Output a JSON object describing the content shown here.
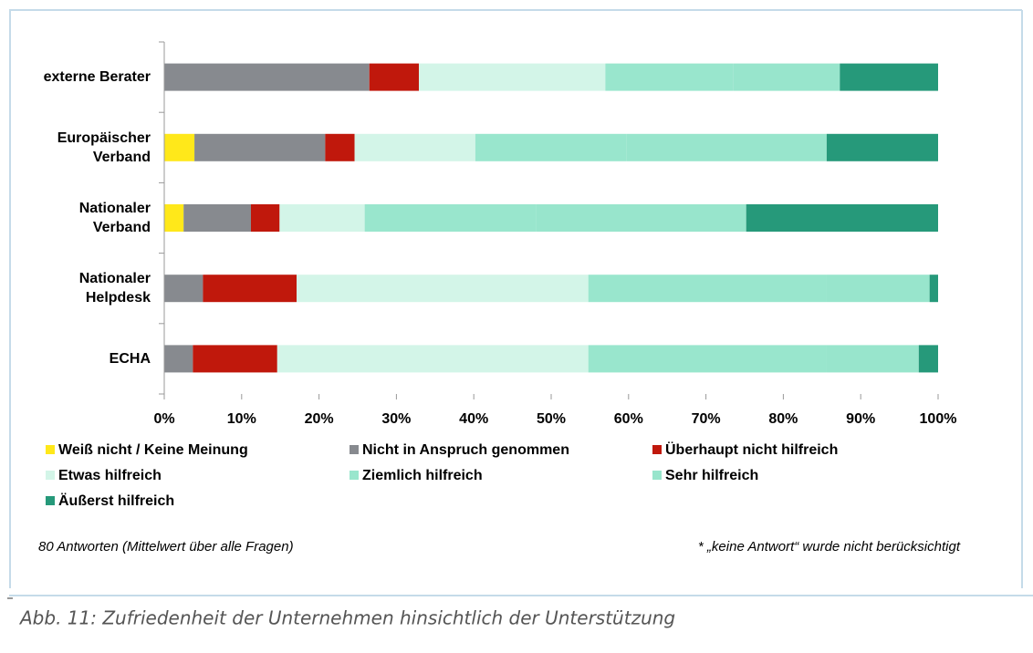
{
  "chart_data": {
    "type": "bar",
    "orientation": "horizontal",
    "stacked": true,
    "categories": [
      "externe Berater",
      "Europäischer Verband",
      "Nationaler Verband",
      "Nationaler Helpdesk",
      "ECHA"
    ],
    "series": [
      {
        "name": "Weiß nicht / Keine Meinung",
        "color": "#ffe81a",
        "values": [
          0,
          3.9,
          2.5,
          0,
          0
        ]
      },
      {
        "name": "Nicht in Anspruch genommen",
        "color": "#878a8f",
        "values": [
          26.5,
          16.9,
          8.7,
          5.0,
          3.7
        ]
      },
      {
        "name": "Überhaupt nicht hilfreich",
        "color": "#c0180c",
        "values": [
          6.4,
          3.8,
          3.7,
          12.1,
          10.9
        ]
      },
      {
        "name": "Etwas hilfreich",
        "color": "#d3f5e8",
        "values": [
          24.1,
          15.6,
          11.0,
          37.7,
          40.2
        ]
      },
      {
        "name": "Ziemlich hilfreich",
        "color": "#99e6cd",
        "values": [
          16.5,
          19.5,
          22.2,
          30.7,
          30.7
        ]
      },
      {
        "name": "Sehr hilfreich",
        "color": "#98e5cc",
        "values": [
          13.8,
          25.9,
          27.1,
          13.4,
          12.0
        ]
      },
      {
        "name": "Äußerst hilfreich",
        "color": "#26997a",
        "values": [
          12.7,
          14.4,
          24.8,
          1.1,
          2.5
        ]
      }
    ],
    "xlim": [
      0,
      100
    ],
    "xticks": [
      {
        "value": 0,
        "label": "0%"
      },
      {
        "value": 10,
        "label": "10%"
      },
      {
        "value": 20,
        "label": "20%"
      },
      {
        "value": 30,
        "label": "30%"
      },
      {
        "value": 40,
        "label": "40%"
      },
      {
        "value": 50,
        "label": "50%"
      },
      {
        "value": 60,
        "label": "60%"
      },
      {
        "value": 70,
        "label": "70%"
      },
      {
        "value": 80,
        "label": "80%"
      },
      {
        "value": 90,
        "label": "90%"
      },
      {
        "value": 100,
        "label": "100%"
      }
    ],
    "legend": "bottom",
    "annotations": [
      "80 Antworten (Mittelwert über alle Fragen)",
      "* „keine Antwort“ wurde nicht berücksichtigt"
    ]
  },
  "caption": "Abb. 11: Zufriedenheit der Unternehmen hinsichtlich der Unterstützung"
}
